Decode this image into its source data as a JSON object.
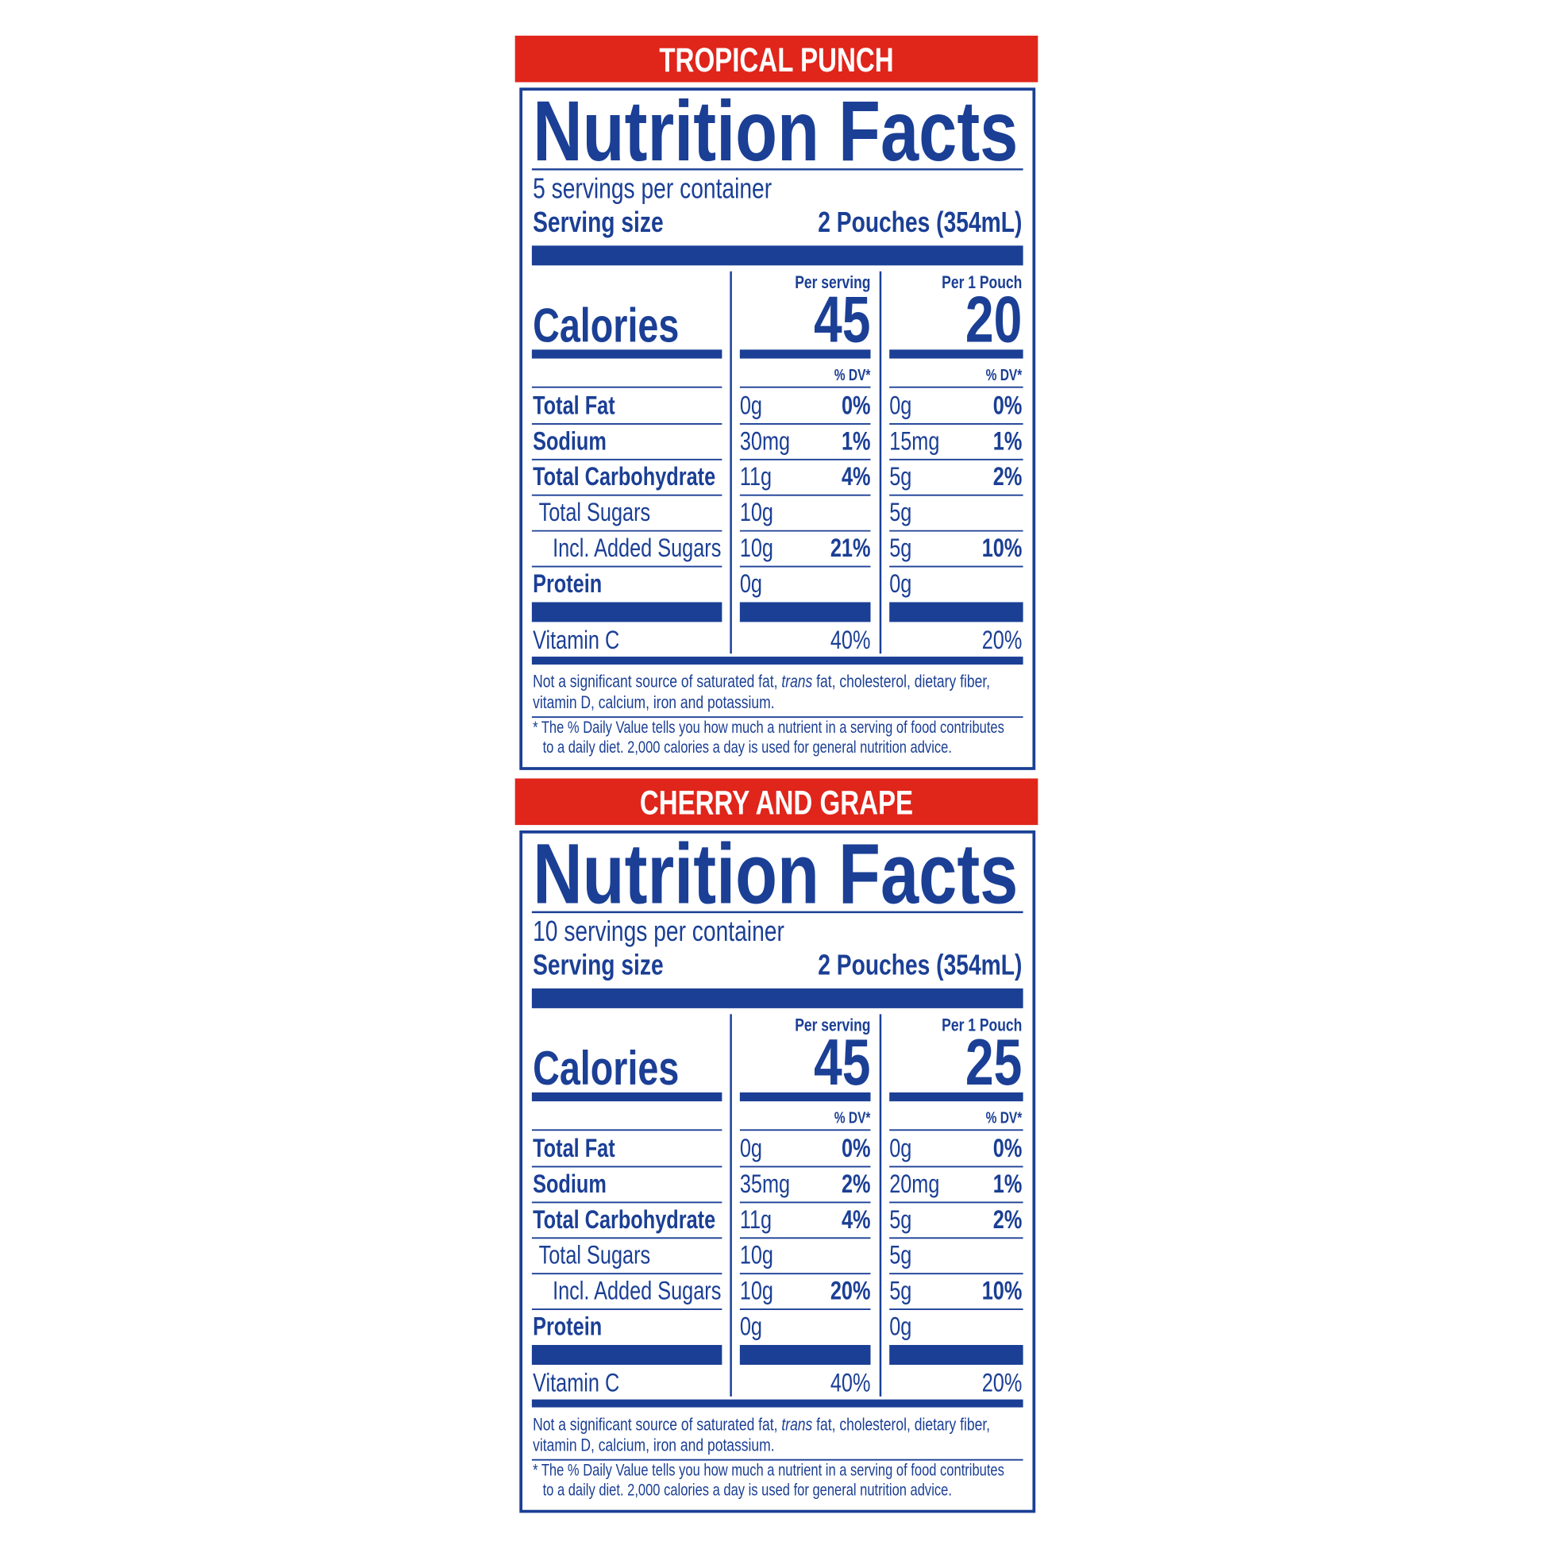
{
  "panels": [
    {
      "flavor": "TROPICAL PUNCH",
      "title": "Nutrition Facts",
      "servings": "5 servings per container",
      "serving_size_label": "Serving size",
      "serving_size": "2 Pouches (354mL)",
      "per_serving_label": "Per serving",
      "per_pouch_label": "Per 1 Pouch",
      "calories_label": "Calories",
      "calories_serving": "45",
      "calories_pouch": "20",
      "dv_label": "% DV*",
      "rows": [
        {
          "name": "Total Fat",
          "serving_amount": "0g",
          "serving_dv": "0%",
          "pouch_amount": "0g",
          "pouch_dv": "0%"
        },
        {
          "name": "Sodium",
          "serving_amount": "30mg",
          "serving_dv": "1%",
          "pouch_amount": "15mg",
          "pouch_dv": "1%"
        },
        {
          "name": "Total Carbohydrate",
          "serving_amount": "11g",
          "serving_dv": "4%",
          "pouch_amount": "5g",
          "pouch_dv": "2%"
        },
        {
          "name": "Total Sugars",
          "serving_amount": "10g",
          "pouch_amount": "5g"
        },
        {
          "name": "Incl. Added Sugars",
          "serving_amount": "10g",
          "serving_dv": "21%",
          "pouch_amount": "5g",
          "pouch_dv": "10%"
        },
        {
          "name": "Protein",
          "serving_amount": "0g",
          "pouch_amount": "0g"
        }
      ],
      "vitamin": {
        "name": "Vitamin C",
        "serving_dv": "40%",
        "pouch_dv": "20%"
      },
      "note_line1": [
        "Not a significant source of saturated fat, ",
        "trans",
        " fat, cholesterol, dietary fiber,"
      ],
      "note_line2": "vitamin D, calcium, iron and potassium.",
      "dv_note": [
        "* The % Daily Value tells you how much a nutrient in a serving of food contributes",
        "to a daily diet. 2,000 calories a day is used for general nutrition advice."
      ]
    },
    {
      "flavor": "CHERRY AND GRAPE",
      "title": "Nutrition Facts",
      "servings": "10 servings per container",
      "serving_size_label": "Serving size",
      "serving_size": "2 Pouches (354mL)",
      "per_serving_label": "Per serving",
      "per_pouch_label": "Per 1 Pouch",
      "calories_label": "Calories",
      "calories_serving": "45",
      "calories_pouch": "25",
      "dv_label": "% DV*",
      "rows": [
        {
          "name": "Total Fat",
          "serving_amount": "0g",
          "serving_dv": "0%",
          "pouch_amount": "0g",
          "pouch_dv": "0%"
        },
        {
          "name": "Sodium",
          "serving_amount": "35mg",
          "serving_dv": "2%",
          "pouch_amount": "20mg",
          "pouch_dv": "1%"
        },
        {
          "name": "Total Carbohydrate",
          "serving_amount": "11g",
          "serving_dv": "4%",
          "pouch_amount": "5g",
          "pouch_dv": "2%"
        },
        {
          "name": "Total Sugars",
          "serving_amount": "10g",
          "pouch_amount": "5g"
        },
        {
          "name": "Incl. Added Sugars",
          "serving_amount": "10g",
          "serving_dv": "20%",
          "pouch_amount": "5g",
          "pouch_dv": "10%"
        },
        {
          "name": "Protein",
          "serving_amount": "0g",
          "pouch_amount": "0g"
        }
      ],
      "vitamin": {
        "name": "Vitamin C",
        "serving_dv": "40%",
        "pouch_dv": "20%"
      },
      "note_line1": [
        "Not a significant source of saturated fat, ",
        "trans",
        " fat, cholesterol, dietary fiber,"
      ],
      "note_line2": "vitamin D, calcium, iron and potassium.",
      "dv_note": [
        "* The % Daily Value tells you how much a nutrient in a serving of food contributes",
        "to a daily diet. 2,000 calories a day is used for general nutrition advice."
      ]
    }
  ]
}
